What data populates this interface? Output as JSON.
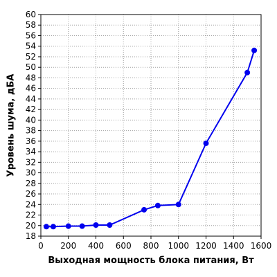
{
  "chart_data": {
    "type": "line",
    "title": "",
    "xlabel": "Выходная мощность блока питания, Вт",
    "ylabel": "Уровень шума, дБА",
    "xlim": [
      0,
      1600
    ],
    "ylim": [
      18,
      60
    ],
    "x_ticks": [
      0,
      200,
      400,
      600,
      800,
      1000,
      1200,
      1400,
      1600
    ],
    "y_ticks": [
      18,
      20,
      22,
      24,
      26,
      28,
      30,
      32,
      34,
      36,
      38,
      40,
      42,
      44,
      46,
      48,
      50,
      52,
      54,
      56,
      58,
      60
    ],
    "grid": true,
    "legend": "none",
    "series": [
      {
        "color": "#0000ee",
        "points": [
          {
            "x": 40,
            "y": 19.8
          },
          {
            "x": 90,
            "y": 19.8
          },
          {
            "x": 200,
            "y": 19.9
          },
          {
            "x": 300,
            "y": 19.9
          },
          {
            "x": 400,
            "y": 20.1
          },
          {
            "x": 500,
            "y": 20.1
          },
          {
            "x": 750,
            "y": 23.0
          },
          {
            "x": 850,
            "y": 23.8
          },
          {
            "x": 1000,
            "y": 24.0
          },
          {
            "x": 1200,
            "y": 35.6
          },
          {
            "x": 1500,
            "y": 49.0
          },
          {
            "x": 1550,
            "y": 53.2
          }
        ]
      }
    ]
  }
}
